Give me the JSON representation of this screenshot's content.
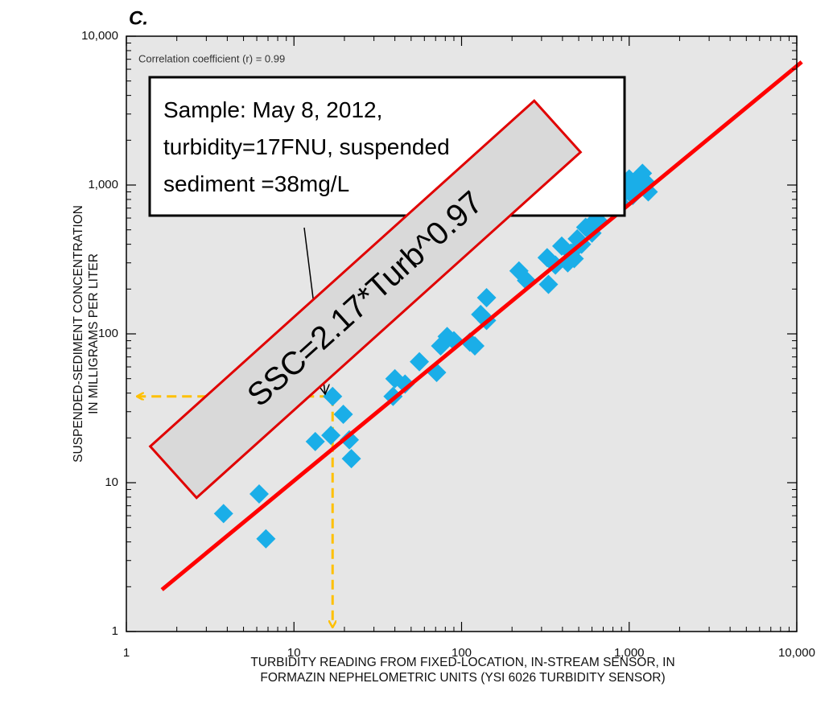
{
  "chart_data": {
    "type": "scatter",
    "title": "C.",
    "annotation": "Correlation coefficient (r) = 0.99",
    "callout": [
      "Sample: May 8, 2012,",
      "turbidity=17FNU, suspended",
      "sediment =38mg/L"
    ],
    "equation": "SSC=2.17*Turb^0.97",
    "xlabel": [
      "TURBIDITY READING FROM FIXED-LOCATION, IN-STREAM SENSOR, IN",
      "FORMAZIN NEPHELOMETRIC UNITS (YSI 6026 TURBIDITY SENSOR)"
    ],
    "ylabel": [
      "SUSPENDED-SEDIMENT CONCENTRATION",
      "IN MILLIGRAMS PER LITER"
    ],
    "xscale": "log",
    "yscale": "log",
    "grid": false,
    "xlim": [
      1,
      10000
    ],
    "ylim": [
      1,
      10000
    ],
    "xticks": [
      1,
      10,
      100,
      {
        "value": 1000,
        "label": "1,000"
      },
      {
        "value": 10000,
        "label": "10,000"
      }
    ],
    "yticks": [
      1,
      10,
      100,
      {
        "value": 1000,
        "label": "1,000"
      },
      {
        "value": 10000,
        "label": "10,000"
      }
    ],
    "series": [
      {
        "color": "#1aaee8",
        "x": [
          3.8,
          6.2,
          6.8,
          13.4,
          17,
          16.6,
          19.7,
          21.4,
          22,
          39,
          40,
          46,
          56,
          71,
          75,
          82,
          90,
          120,
          112,
          130,
          141,
          141,
          220,
          244,
          324,
          363,
          330,
          396,
          450,
          490,
          430,
          470,
          550,
          600,
          625,
          700,
          650,
          820,
          880,
          950,
          1000,
          1050,
          1150,
          1250,
          1300,
          1200,
          780,
          1000,
          520,
          600
        ],
        "values": [
          6.2,
          8.4,
          4.2,
          18.9,
          38,
          20.8,
          28.8,
          19.4,
          14.5,
          38,
          50,
          46,
          65,
          55,
          83,
          96,
          90,
          83,
          88,
          135,
          123,
          175,
          265,
          228,
          325,
          290,
          215,
          389,
          350,
          435,
          300,
          320,
          520,
          475,
          645,
          760,
          580,
          820,
          760,
          900,
          1100,
          850,
          1000,
          1050,
          900,
          1200,
          700,
          950,
          400,
          550
        ]
      }
    ],
    "fit_line": {
      "color": "#ff0000",
      "x": [
        1.63,
        10700
      ],
      "values": [
        1.91,
        6715
      ]
    },
    "guides": {
      "color": "#ffc000",
      "x": 17,
      "y": 38
    }
  }
}
